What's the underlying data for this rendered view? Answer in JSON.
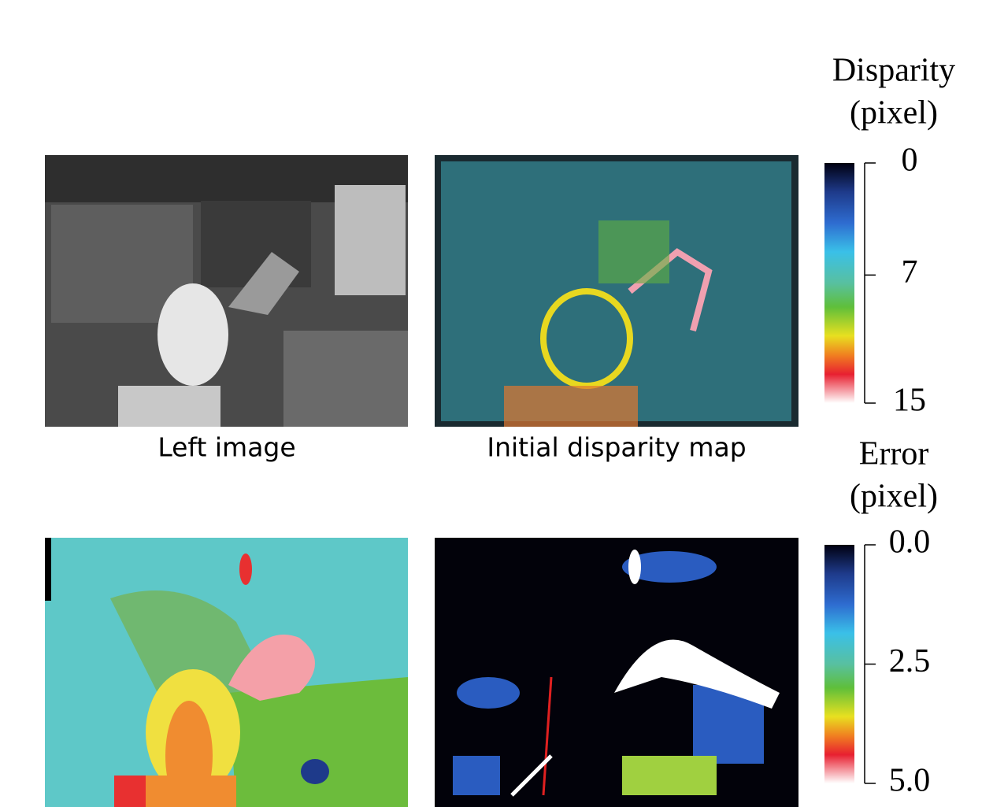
{
  "panels": [
    {
      "label": "Left image"
    },
    {
      "label": "Initial disparity map"
    }
  ],
  "colorbars": [
    {
      "title": [
        "Disparity",
        "(pixel)"
      ],
      "range": [
        0,
        15
      ],
      "ticks": [
        0,
        7,
        15
      ]
    },
    {
      "title": [
        "Error",
        "(pixel)"
      ],
      "range": [
        0,
        5
      ],
      "ticks": [
        {
          "value": 0,
          "label": "0.0"
        },
        {
          "value": 2.5,
          "label": "2.5"
        },
        {
          "value": 5,
          "label": "5.0"
        }
      ]
    }
  ]
}
